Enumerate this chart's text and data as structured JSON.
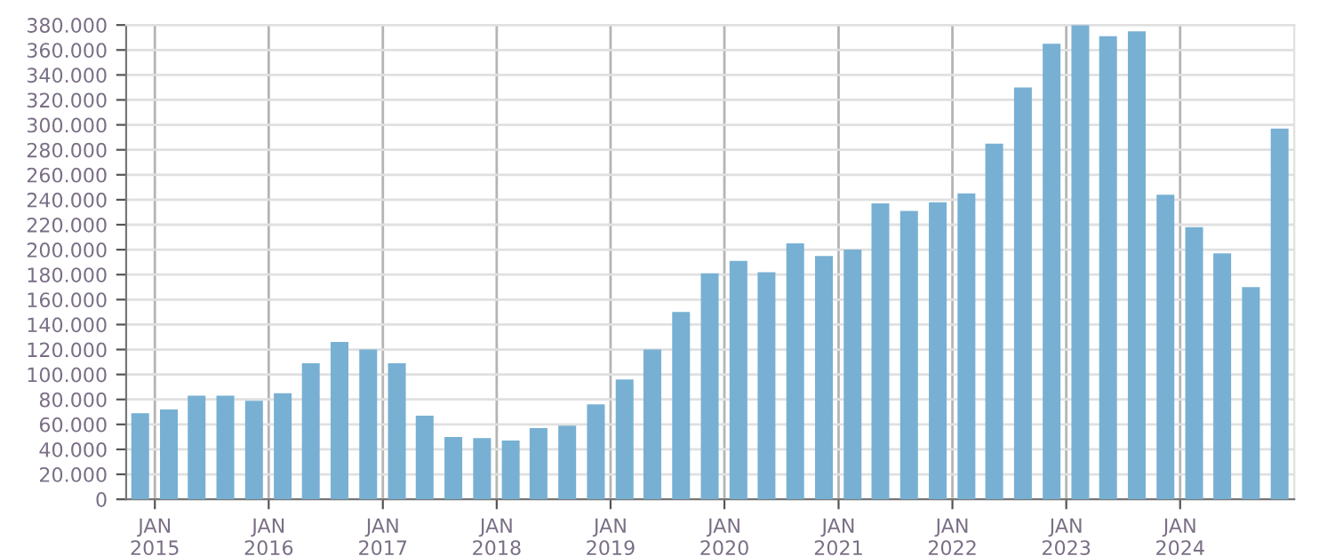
{
  "chart_data": {
    "type": "bar",
    "x": [
      "2014-11-15",
      "2015-02-15",
      "2015-05-15",
      "2015-08-15",
      "2015-11-15",
      "2016-02-15",
      "2016-05-15",
      "2016-08-15",
      "2016-11-15",
      "2017-02-15",
      "2017-05-15",
      "2017-08-15",
      "2017-11-15",
      "2018-02-15",
      "2018-05-15",
      "2018-08-15",
      "2018-11-15",
      "2019-02-15",
      "2019-05-15",
      "2019-08-15",
      "2019-11-15",
      "2020-02-15",
      "2020-05-15",
      "2020-08-15",
      "2020-11-15",
      "2021-02-15",
      "2021-05-15",
      "2021-08-15",
      "2021-11-15",
      "2022-02-15",
      "2022-05-15",
      "2022-08-15",
      "2022-11-15",
      "2023-02-15",
      "2023-05-15",
      "2023-08-15",
      "2023-11-15",
      "2024-02-15",
      "2024-05-15",
      "2024-08-15",
      "2024-11-15"
    ],
    "values": [
      69000,
      72000,
      83000,
      83000,
      79000,
      85000,
      109000,
      126000,
      120000,
      109000,
      67000,
      50000,
      49000,
      47000,
      57000,
      59000,
      76000,
      96000,
      120000,
      150000,
      181000,
      191000,
      182000,
      205000,
      195000,
      200000,
      237000,
      231000,
      238000,
      245000,
      285000,
      330000,
      365000,
      380000,
      371000,
      375000,
      244000,
      218000,
      197000,
      170000,
      297000
    ],
    "color": "#77b0d3",
    "xlim": [
      "2014-10-01",
      "2025-01-01"
    ],
    "xticks": [
      {
        "value": "2015-01-01",
        "label": "JAN\n2015"
      },
      {
        "value": "2016-01-01",
        "label": "JAN\n2016"
      },
      {
        "value": "2017-01-01",
        "label": "JAN\n2017"
      },
      {
        "value": "2018-01-01",
        "label": "JAN\n2018"
      },
      {
        "value": "2019-01-01",
        "label": "JAN\n2019"
      },
      {
        "value": "2020-01-01",
        "label": "JAN\n2020"
      },
      {
        "value": "2021-01-01",
        "label": "JAN\n2021"
      },
      {
        "value": "2022-01-01",
        "label": "JAN\n2022"
      },
      {
        "value": "2023-01-01",
        "label": "JAN\n2023"
      },
      {
        "value": "2024-01-01",
        "label": "JAN\n2024"
      }
    ],
    "ylim": [
      0,
      380000
    ],
    "yticks": [
      0,
      {
        "value": 20000,
        "label": "20.000"
      },
      {
        "value": 40000,
        "label": "40.000"
      },
      {
        "value": 60000,
        "label": "60.000"
      },
      {
        "value": 80000,
        "label": "80.000"
      },
      {
        "value": 100000,
        "label": "100.000"
      },
      {
        "value": 120000,
        "label": "120.000"
      },
      {
        "value": 140000,
        "label": "140.000"
      },
      {
        "value": 160000,
        "label": "160.000"
      },
      {
        "value": 180000,
        "label": "180.000"
      },
      {
        "value": 200000,
        "label": "200.000"
      },
      {
        "value": 220000,
        "label": "220.000"
      },
      {
        "value": 240000,
        "label": "240.000"
      },
      {
        "value": 260000,
        "label": "260.000"
      },
      {
        "value": 280000,
        "label": "280.000"
      },
      {
        "value": 300000,
        "label": "300.000"
      },
      {
        "value": 320000,
        "label": "320.000"
      },
      {
        "value": 340000,
        "label": "340.000"
      },
      {
        "value": 360000,
        "label": "360.000"
      },
      {
        "value": 380000,
        "label": "380.000"
      }
    ],
    "grid": true,
    "legend": false
  }
}
